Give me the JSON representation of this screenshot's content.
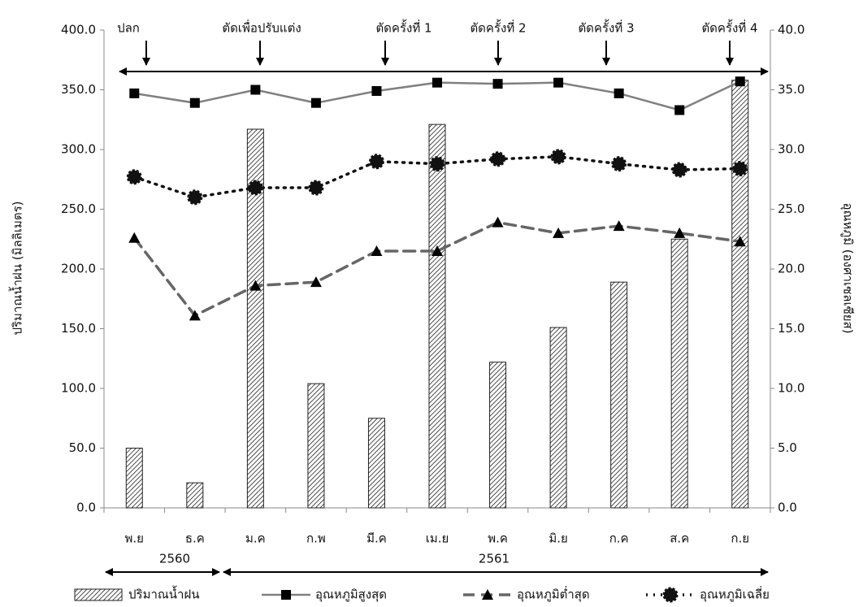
{
  "chart_data": {
    "type": "bar_line",
    "categories": [
      "พ.ย",
      "ธ.ค",
      "ม.ค",
      "ก.พ",
      "มี.ค",
      "เม.ย",
      "พ.ค",
      "มิ.ย",
      "ก.ค",
      "ส.ค",
      "ก.ย"
    ],
    "series": [
      {
        "name": "ปริมาณน้ำฝน",
        "type": "bar",
        "color": "#222222",
        "values": [
          50,
          21,
          317,
          104,
          75,
          321,
          122,
          151,
          189,
          225,
          358
        ]
      },
      {
        "name": "อุณหภูมิสูงสุด",
        "type": "line",
        "axis": "y2",
        "color": "#808080",
        "marker": "square",
        "dash": "solid",
        "values": [
          34.7,
          33.9,
          35.0,
          33.9,
          34.9,
          35.6,
          35.5,
          35.6,
          34.7,
          33.3,
          35.7
        ]
      },
      {
        "name": "อุณหภูมิต่ำสุด",
        "type": "line",
        "axis": "y2",
        "color": "#666666",
        "marker": "triangle",
        "dash": "dash",
        "values": [
          22.6,
          16.1,
          18.6,
          18.9,
          21.5,
          21.5,
          23.9,
          23.0,
          23.6,
          23.0,
          22.3
        ]
      },
      {
        "name": "อุณหภูมิเฉลี่ย",
        "type": "line",
        "axis": "y2",
        "color": "#111111",
        "marker": "circle",
        "dash": "dot",
        "values": [
          27.7,
          26.0,
          26.8,
          26.8,
          29.0,
          28.8,
          29.2,
          29.4,
          28.8,
          28.3,
          28.4
        ]
      }
    ],
    "ylabel": "ปริมาณน้ำฝน (มิลลิเมตร)",
    "y2label": "อุณหภูมิ (องศาเซลเซียส)",
    "ylim": [
      0,
      400
    ],
    "yticks": [
      {
        "value": 0,
        "label": "0.0"
      },
      {
        "value": 50,
        "label": "50.0"
      },
      {
        "value": 100,
        "label": "100.0"
      },
      {
        "value": 150,
        "label": "150.0"
      },
      {
        "value": 200,
        "label": "200.0"
      },
      {
        "value": 250,
        "label": "250.0"
      },
      {
        "value": 300,
        "label": "300.0"
      },
      {
        "value": 350,
        "label": "350.0"
      },
      {
        "value": 400,
        "label": "400.0"
      }
    ],
    "y2lim": [
      0,
      40
    ],
    "y2ticks": [
      {
        "value": 0,
        "label": "0.0"
      },
      {
        "value": 5,
        "label": "5.0"
      },
      {
        "value": 10,
        "label": "10.0"
      },
      {
        "value": 15,
        "label": "15.0"
      },
      {
        "value": 20,
        "label": "20.0"
      },
      {
        "value": 25,
        "label": "25.0"
      },
      {
        "value": 30,
        "label": "30.0"
      },
      {
        "value": 35,
        "label": "35.0"
      },
      {
        "value": 40,
        "label": "40.0"
      }
    ],
    "annotations": [
      "ปลก",
      "ตัดเพื่อปรับแต่ง",
      "ตัดครั้งที่ 1",
      "ตัดครั้งที่ 2",
      "ตัดครั้งที่ 3",
      "ตัดครั้งที่ 4"
    ],
    "year_labels": [
      "2560",
      "2561"
    ],
    "legend": "bottom"
  }
}
